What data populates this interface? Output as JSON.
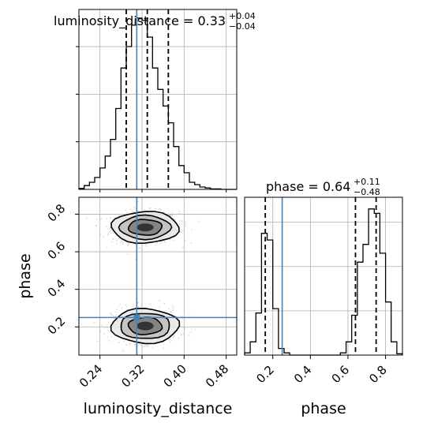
{
  "chart_data": {
    "type": "corner",
    "parameters": [
      "luminosity_distance",
      "phase"
    ],
    "truths": {
      "luminosity_distance": 0.31,
      "phase": 0.25
    },
    "marginals": {
      "luminosity_distance": {
        "title": {
          "prefix": "luminosity_distance = ",
          "median": "0.33",
          "upper": "+0.04",
          "lower": "−0.04"
        },
        "quantiles": [
          0.29,
          0.33,
          0.37
        ],
        "bin_edges": [
          0.2,
          0.21,
          0.22,
          0.23,
          0.24,
          0.25,
          0.26,
          0.27,
          0.28,
          0.29,
          0.3,
          0.31,
          0.32,
          0.33,
          0.34,
          0.35,
          0.36,
          0.37,
          0.38,
          0.39,
          0.4,
          0.41,
          0.42,
          0.43,
          0.44,
          0.45,
          0.46,
          0.47,
          0.48,
          0.49,
          0.5
        ],
        "counts": [
          2,
          8,
          15,
          25,
          45,
          70,
          105,
          170,
          255,
          300,
          345,
          360,
          355,
          320,
          255,
          210,
          175,
          140,
          90,
          50,
          35,
          15,
          10,
          5,
          3,
          1,
          1,
          0,
          0,
          0
        ],
        "xlim": [
          0.2,
          0.5
        ]
      },
      "phase": {
        "title": {
          "prefix": "phase = ",
          "median": "0.64",
          "upper": "+0.11",
          "lower": "−0.48"
        },
        "quantiles": [
          0.16,
          0.64,
          0.75
        ],
        "bin_edges": [
          0.05,
          0.08,
          0.11,
          0.14,
          0.17,
          0.2,
          0.23,
          0.26,
          0.29,
          0.32,
          0.35,
          0.38,
          0.41,
          0.44,
          0.47,
          0.5,
          0.53,
          0.56,
          0.59,
          0.62,
          0.65,
          0.68,
          0.71,
          0.74,
          0.77,
          0.8,
          0.83,
          0.86,
          0.89
        ],
        "counts": [
          5,
          30,
          95,
          275,
          260,
          105,
          15,
          5,
          0,
          0,
          0,
          0,
          0,
          0,
          0,
          0,
          0,
          5,
          30,
          90,
          210,
          250,
          330,
          320,
          230,
          120,
          30,
          3
        ],
        "xlim": [
          0.05,
          0.89
        ]
      }
    },
    "joint": {
      "x": "luminosity_distance",
      "y": "phase",
      "xlim": [
        0.2,
        0.5
      ],
      "ylim": [
        0.05,
        0.89
      ],
      "modes": [
        {
          "cx": 0.326,
          "cy": 0.73,
          "sx": 0.032,
          "sy": 0.042,
          "weight": 0.55
        },
        {
          "cx": 0.326,
          "cy": 0.205,
          "sx": 0.032,
          "sy": 0.046,
          "weight": 0.45
        }
      ]
    },
    "axes": {
      "luminosity_distance": {
        "ticks": [
          0.24,
          0.32,
          0.4,
          0.48
        ],
        "tick_labels": [
          "0.24",
          "0.32",
          "0.40",
          "0.48"
        ],
        "label": "luminosity_distance"
      },
      "phase": {
        "ticks": [
          0.2,
          0.4,
          0.6,
          0.8
        ],
        "tick_labels": [
          "0.2",
          "0.4",
          "0.6",
          "0.8"
        ],
        "label": "phase"
      }
    },
    "grid": true,
    "colors": {
      "histogram": "#000000",
      "truth": "#4682b4",
      "contour": "#000000",
      "scatter": "#bdbdbd"
    }
  }
}
